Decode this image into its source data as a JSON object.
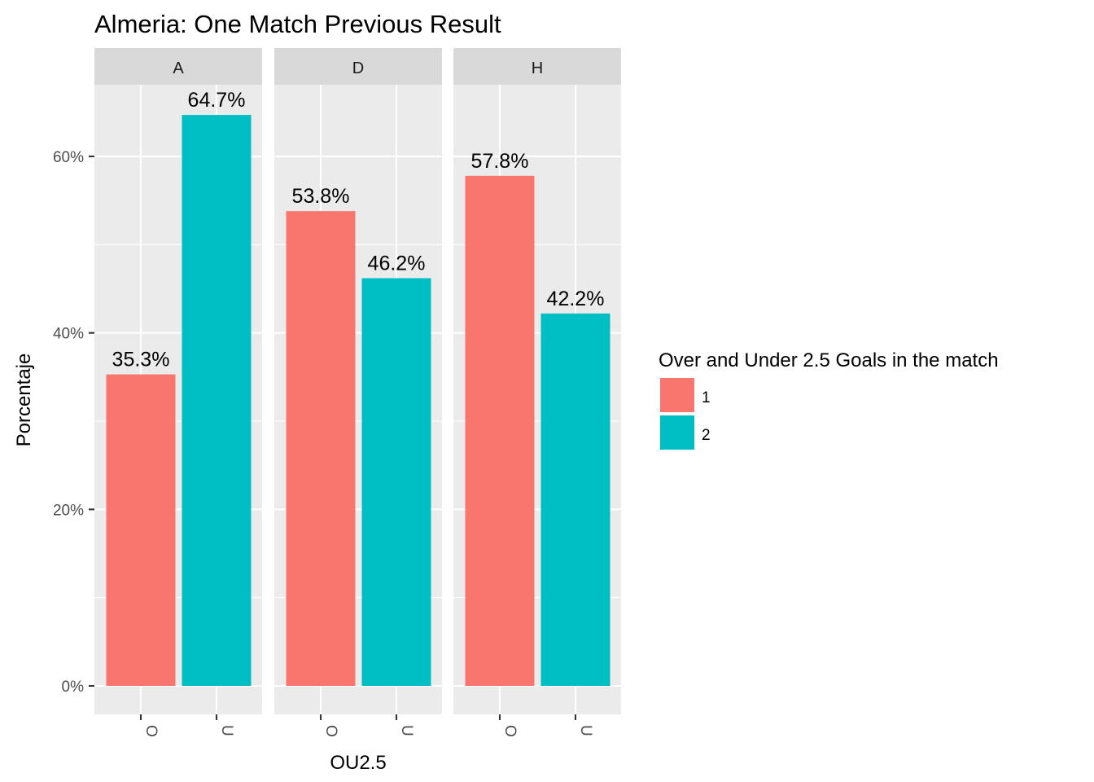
{
  "chart_data": {
    "type": "bar",
    "title": "Almeria: One Match Previous Result",
    "xlabel": "OU2.5",
    "ylabel": "Porcentaje",
    "ylim": [
      0,
      68.5
    ],
    "yticks": [
      0,
      20,
      40,
      60
    ],
    "ytick_labels": [
      "0%",
      "20%",
      "40%",
      "60%"
    ],
    "grid": true,
    "facets": [
      {
        "strip_label": "A",
        "categories": [
          "O",
          "U"
        ],
        "values": [
          35.3,
          64.7
        ],
        "labels": [
          "35.3%",
          "64.7%"
        ],
        "fill_series": [
          "1",
          "2"
        ]
      },
      {
        "strip_label": "D",
        "categories": [
          "O",
          "U"
        ],
        "values": [
          53.8,
          46.2
        ],
        "labels": [
          "53.8%",
          "46.2%"
        ],
        "fill_series": [
          "1",
          "2"
        ]
      },
      {
        "strip_label": "H",
        "categories": [
          "O",
          "U"
        ],
        "values": [
          57.8,
          42.2
        ],
        "labels": [
          "57.8%",
          "42.2%"
        ],
        "fill_series": [
          "1",
          "2"
        ]
      }
    ],
    "legend": {
      "title": "Over and Under 2.5 Goals in the match",
      "position": "right",
      "entries": [
        {
          "name": "1",
          "color": "#F8766D"
        },
        {
          "name": "2",
          "color": "#00BFC4"
        }
      ]
    }
  }
}
